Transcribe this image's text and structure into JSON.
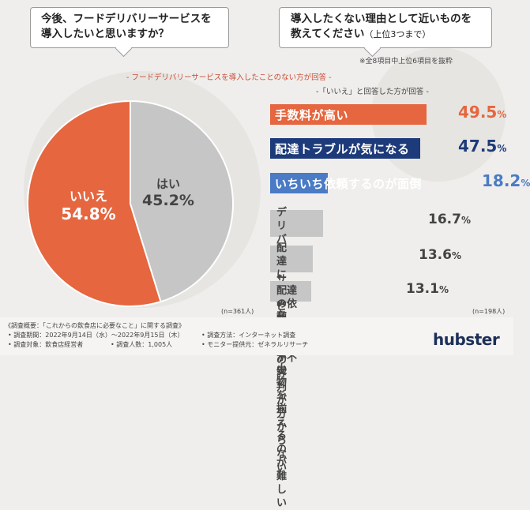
{
  "left_question": {
    "line1": "今後、フードデリバリーサービスを",
    "line2": "導入したいと思いますか？"
  },
  "right_question": {
    "line1": "導入したくない理由として近いものを",
    "line2": "教えてください",
    "suffix": "（上位3つまで）"
  },
  "note_top": "※全8項目中上位6項目を抜粋",
  "subheading": "- フードデリバリーサービスを導入したことのない方が回答 -",
  "subheading2": "-「いいえ」と回答した方が回答 -",
  "pie_n": "(n=361人)",
  "bar_n": "(n=198人)",
  "colors": {
    "orange": "#e5663f",
    "navy": "#1d3a7a",
    "blue": "#4a7bc4",
    "gray": "#c6c6c6",
    "text_gray": "#444444"
  },
  "chart_data": [
    {
      "type": "pie",
      "slices": [
        {
          "label": "いいえ",
          "value": 54.8,
          "display": "54.8%",
          "color": "#e5663f"
        },
        {
          "label": "はい",
          "value": 45.2,
          "display": "45.2%",
          "color": "#c6c6c6"
        }
      ]
    },
    {
      "type": "bar",
      "orientation": "horizontal",
      "categories": [
        "手数料が高い",
        "配達トラブルが気になる",
        "いちいち依頼するのが面倒",
        "デリバリーサービス業者の評判が分からない",
        "配達に必要な容器や小物を揃えるのが難しい",
        "配達の依頼（流れ）が不安"
      ],
      "values": [
        49.5,
        47.5,
        18.2,
        16.7,
        13.6,
        13.1
      ],
      "labels": [
        "49.5%",
        "47.5%",
        "18.2%",
        "16.7%",
        "13.6%",
        "13.1%"
      ],
      "label_lines": [
        [
          "手数料が高い"
        ],
        [
          "配達トラブルが気になる"
        ],
        [
          "いちいち依頼するのが面倒"
        ],
        [
          "デリバリーサービス業者の",
          "評判が分からない"
        ],
        [
          "配達に必要な容器や",
          "小物を揃えるのが難しい"
        ],
        [
          "配達の依頼（流れ）が不安"
        ]
      ],
      "bar_colors": [
        "#e5663f",
        "#1d3a7a",
        "#4a7bc4",
        "#c6c6c6",
        "#c6c6c6",
        "#c6c6c6"
      ],
      "xlim": [
        0,
        60
      ]
    }
  ],
  "footer": {
    "title": "《調査概要：「これからの飲食店に必要なこと」に関する調査》",
    "period": "• 調査期間：2022年9月14日（水）〜2022年9月15日（木）",
    "method": "• 調査方法：インターネット調査",
    "target": "• 調査対象：飲食店経営者",
    "count": "• 調査人数：1,005人",
    "provider": "• モニター提供元：ゼネラルリサーチ",
    "logo": "hubster"
  }
}
